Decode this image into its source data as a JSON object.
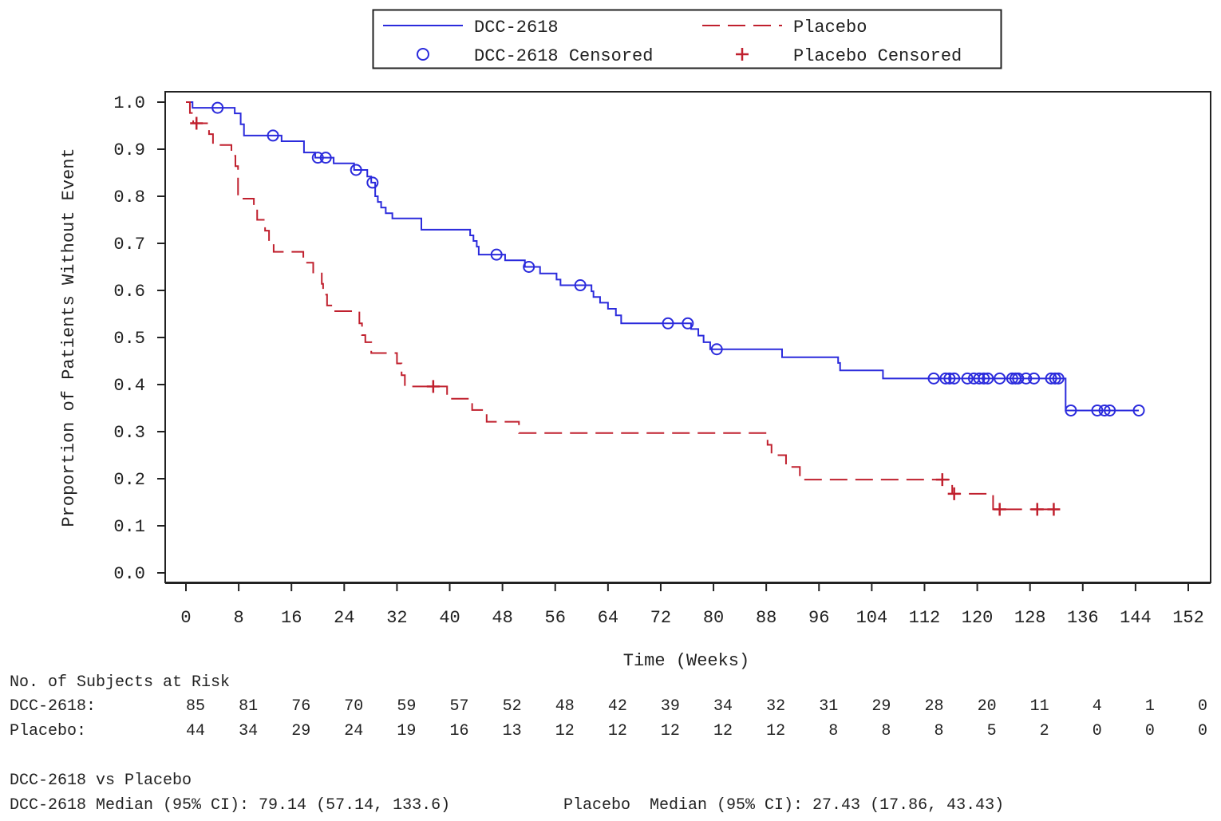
{
  "chart_data": {
    "type": "line",
    "subtype": "kaplan-meier",
    "xlabel": "Time (Weeks)",
    "ylabel": "Proportion of Patients Without Event",
    "xlim": [
      0,
      152
    ],
    "ylim": [
      0,
      1.0
    ],
    "x_ticks": [
      "0",
      "8",
      "16",
      "24",
      "32",
      "40",
      "48",
      "56",
      "64",
      "72",
      "80",
      "88",
      "96",
      "104",
      "112",
      "120",
      "128",
      "136",
      "144",
      "152"
    ],
    "y_ticks": [
      "0.0",
      "0.1",
      "0.2",
      "0.3",
      "0.4",
      "0.5",
      "0.6",
      "0.7",
      "0.8",
      "0.9",
      "1.0"
    ],
    "grid": false,
    "legend_position": "top",
    "legend": {
      "dcc": "DCC-2618",
      "placebo": "Placebo",
      "dcc_censored": "DCC-2618 Censored",
      "placebo_censored": "Placebo Censored"
    },
    "series": [
      {
        "name": "DCC-2618",
        "color": "#2b2bdc",
        "style": "solid",
        "censor_marker": "circle",
        "steps": [
          [
            0,
            1.0
          ],
          [
            1.0,
            0.988
          ],
          [
            7.4,
            0.976
          ],
          [
            8.3,
            0.953
          ],
          [
            8.8,
            0.929
          ],
          [
            14.5,
            0.917
          ],
          [
            17.9,
            0.893
          ],
          [
            19.6,
            0.882
          ],
          [
            22.4,
            0.87
          ],
          [
            25.5,
            0.856
          ],
          [
            27.5,
            0.842
          ],
          [
            28.1,
            0.829
          ],
          [
            28.7,
            0.8
          ],
          [
            29.1,
            0.788
          ],
          [
            29.6,
            0.776
          ],
          [
            30.3,
            0.764
          ],
          [
            31.3,
            0.753
          ],
          [
            35.7,
            0.729
          ],
          [
            43.1,
            0.717
          ],
          [
            43.6,
            0.705
          ],
          [
            44.1,
            0.693
          ],
          [
            44.4,
            0.676
          ],
          [
            48.4,
            0.664
          ],
          [
            51.4,
            0.65
          ],
          [
            53.7,
            0.636
          ],
          [
            56.2,
            0.623
          ],
          [
            56.8,
            0.611
          ],
          [
            61.5,
            0.598
          ],
          [
            61.8,
            0.586
          ],
          [
            62.8,
            0.574
          ],
          [
            64.0,
            0.561
          ],
          [
            65.2,
            0.547
          ],
          [
            66.0,
            0.53
          ],
          [
            76.6,
            0.518
          ],
          [
            77.7,
            0.504
          ],
          [
            78.5,
            0.49
          ],
          [
            79.5,
            0.475
          ],
          [
            90.4,
            0.458
          ],
          [
            98.9,
            0.446
          ],
          [
            99.2,
            0.43
          ],
          [
            105.7,
            0.413
          ],
          [
            133.4,
            0.345
          ]
        ],
        "end": 144.5,
        "censored": [
          [
            4.8,
            0.988
          ],
          [
            13.2,
            0.929
          ],
          [
            20.0,
            0.882
          ],
          [
            21.2,
            0.882
          ],
          [
            25.8,
            0.856
          ],
          [
            28.3,
            0.829
          ],
          [
            47.1,
            0.676
          ],
          [
            52.0,
            0.65
          ],
          [
            59.8,
            0.611
          ],
          [
            73.1,
            0.53
          ],
          [
            76.1,
            0.53
          ],
          [
            80.5,
            0.475
          ],
          [
            113.4,
            0.413
          ],
          [
            115.2,
            0.413
          ],
          [
            115.8,
            0.413
          ],
          [
            116.5,
            0.413
          ],
          [
            118.5,
            0.413
          ],
          [
            119.5,
            0.413
          ],
          [
            120.3,
            0.413
          ],
          [
            121.0,
            0.413
          ],
          [
            121.6,
            0.413
          ],
          [
            123.4,
            0.413
          ],
          [
            125.3,
            0.413
          ],
          [
            125.8,
            0.413
          ],
          [
            126.2,
            0.413
          ],
          [
            127.4,
            0.413
          ],
          [
            128.6,
            0.413
          ],
          [
            131.2,
            0.413
          ],
          [
            131.8,
            0.413
          ],
          [
            132.3,
            0.413
          ],
          [
            134.2,
            0.345
          ],
          [
            138.2,
            0.345
          ],
          [
            139.3,
            0.345
          ],
          [
            140.1,
            0.345
          ],
          [
            144.5,
            0.345
          ]
        ]
      },
      {
        "name": "Placebo",
        "color": "#c0202e",
        "style": "dashed",
        "censor_marker": "plus",
        "steps": [
          [
            0,
            1.0
          ],
          [
            0.6,
            0.977
          ],
          [
            1.1,
            0.955
          ],
          [
            3.5,
            0.932
          ],
          [
            4.1,
            0.909
          ],
          [
            6.9,
            0.886
          ],
          [
            7.5,
            0.864
          ],
          [
            7.9,
            0.795
          ],
          [
            10.3,
            0.773
          ],
          [
            10.8,
            0.75
          ],
          [
            12.0,
            0.727
          ],
          [
            12.6,
            0.705
          ],
          [
            13.3,
            0.682
          ],
          [
            17.8,
            0.659
          ],
          [
            19.3,
            0.636
          ],
          [
            20.6,
            0.614
          ],
          [
            20.8,
            0.591
          ],
          [
            21.4,
            0.568
          ],
          [
            22.3,
            0.556
          ],
          [
            26.3,
            0.53
          ],
          [
            26.7,
            0.505
          ],
          [
            27.2,
            0.49
          ],
          [
            28.1,
            0.467
          ],
          [
            32.0,
            0.445
          ],
          [
            32.7,
            0.42
          ],
          [
            33.2,
            0.396
          ],
          [
            39.6,
            0.37
          ],
          [
            43.4,
            0.346
          ],
          [
            45.6,
            0.321
          ],
          [
            50.5,
            0.297
          ],
          [
            88.2,
            0.272
          ],
          [
            88.8,
            0.25
          ],
          [
            91.0,
            0.225
          ],
          [
            93.1,
            0.198
          ],
          [
            116.2,
            0.168
          ],
          [
            122.4,
            0.135
          ]
        ],
        "end": 131.6,
        "censored": [
          [
            1.6,
            0.955
          ],
          [
            37.5,
            0.396
          ],
          [
            114.7,
            0.198
          ],
          [
            116.5,
            0.168
          ],
          [
            123.4,
            0.135
          ],
          [
            129.1,
            0.135
          ],
          [
            131.6,
            0.135
          ]
        ]
      }
    ],
    "at_risk": {
      "title": "No. of Subjects at Risk",
      "rows": [
        {
          "label": "DCC-2618:",
          "values": [
            "85",
            "81",
            "76",
            "70",
            "59",
            "57",
            "52",
            "48",
            "42",
            "39",
            "34",
            "32",
            "31",
            "29",
            "28",
            "20",
            "11",
            "4",
            "1",
            "0"
          ]
        },
        {
          "label": "Placebo:",
          "values": [
            "44",
            "34",
            "29",
            "24",
            "19",
            "16",
            "13",
            "12",
            "12",
            "12",
            "12",
            "12",
            "8",
            "8",
            "8",
            "5",
            "2",
            "0",
            "0",
            "0"
          ]
        }
      ]
    },
    "summary": {
      "comparison": "DCC-2618 vs Placebo",
      "dcc_median": "DCC-2618 Median (95% CI): 79.14 (57.14, 133.6)",
      "placebo_median": "Placebo  Median (95% CI): 27.43 (17.86, 43.43)"
    }
  }
}
